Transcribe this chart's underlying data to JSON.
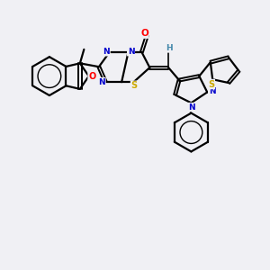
{
  "background_color": "#f0f0f4",
  "bond_color": "#000000",
  "figsize": [
    3.0,
    3.0
  ],
  "dpi": 100,
  "xlim": [
    0,
    10
  ],
  "ylim": [
    0,
    10
  ],
  "atom_colors": {
    "O": "#ff0000",
    "N": "#0000cc",
    "S": "#ccaa00",
    "H": "#4488aa",
    "C": "#000000"
  }
}
